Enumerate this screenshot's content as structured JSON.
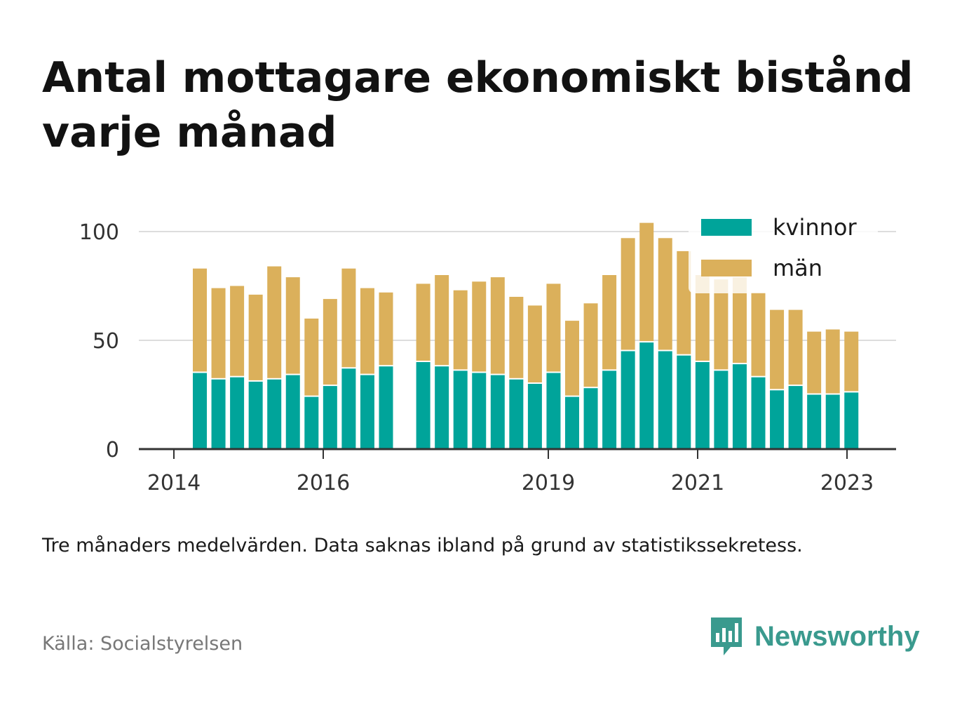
{
  "title": "Antal mottagare ekonomiskt bistånd varje månad",
  "subtitle": "Tre månaders medelvärden. Data saknas ibland på grund av statistikssekretess.",
  "source": "Källa: Socialstyrelsen",
  "brand": "Newsworthy",
  "colors": {
    "kvinnor": "#00a49a",
    "man": "#dbb05b",
    "grid": "#dddddd",
    "axis": "#333333"
  },
  "chart_data": {
    "type": "bar",
    "stacked": true,
    "x_ticks": [
      "2014",
      "2016",
      "2019",
      "2021",
      "2023"
    ],
    "y_ticks": [
      0,
      50,
      100
    ],
    "ylim": [
      0,
      100
    ],
    "legend": {
      "placement": "top-right",
      "entries": [
        "kvinnor",
        "män"
      ]
    },
    "series": [
      {
        "name": "kvinnor",
        "color": "#00a49a",
        "values": [
          35,
          32,
          33,
          31,
          32,
          34,
          24,
          29,
          37,
          34,
          38,
          null,
          40,
          38,
          36,
          35,
          34,
          32,
          30,
          35,
          24,
          28,
          36,
          45,
          49,
          45,
          43,
          40,
          36,
          39,
          33,
          27,
          29,
          25,
          25,
          26
        ]
      },
      {
        "name": "män",
        "color": "#dbb05b",
        "values": [
          48,
          42,
          42,
          40,
          52,
          45,
          36,
          40,
          46,
          40,
          34,
          null,
          36,
          42,
          37,
          42,
          45,
          38,
          36,
          41,
          35,
          39,
          44,
          52,
          55,
          52,
          48,
          40,
          42,
          40,
          39,
          37,
          35,
          29,
          30,
          28
        ]
      }
    ]
  }
}
